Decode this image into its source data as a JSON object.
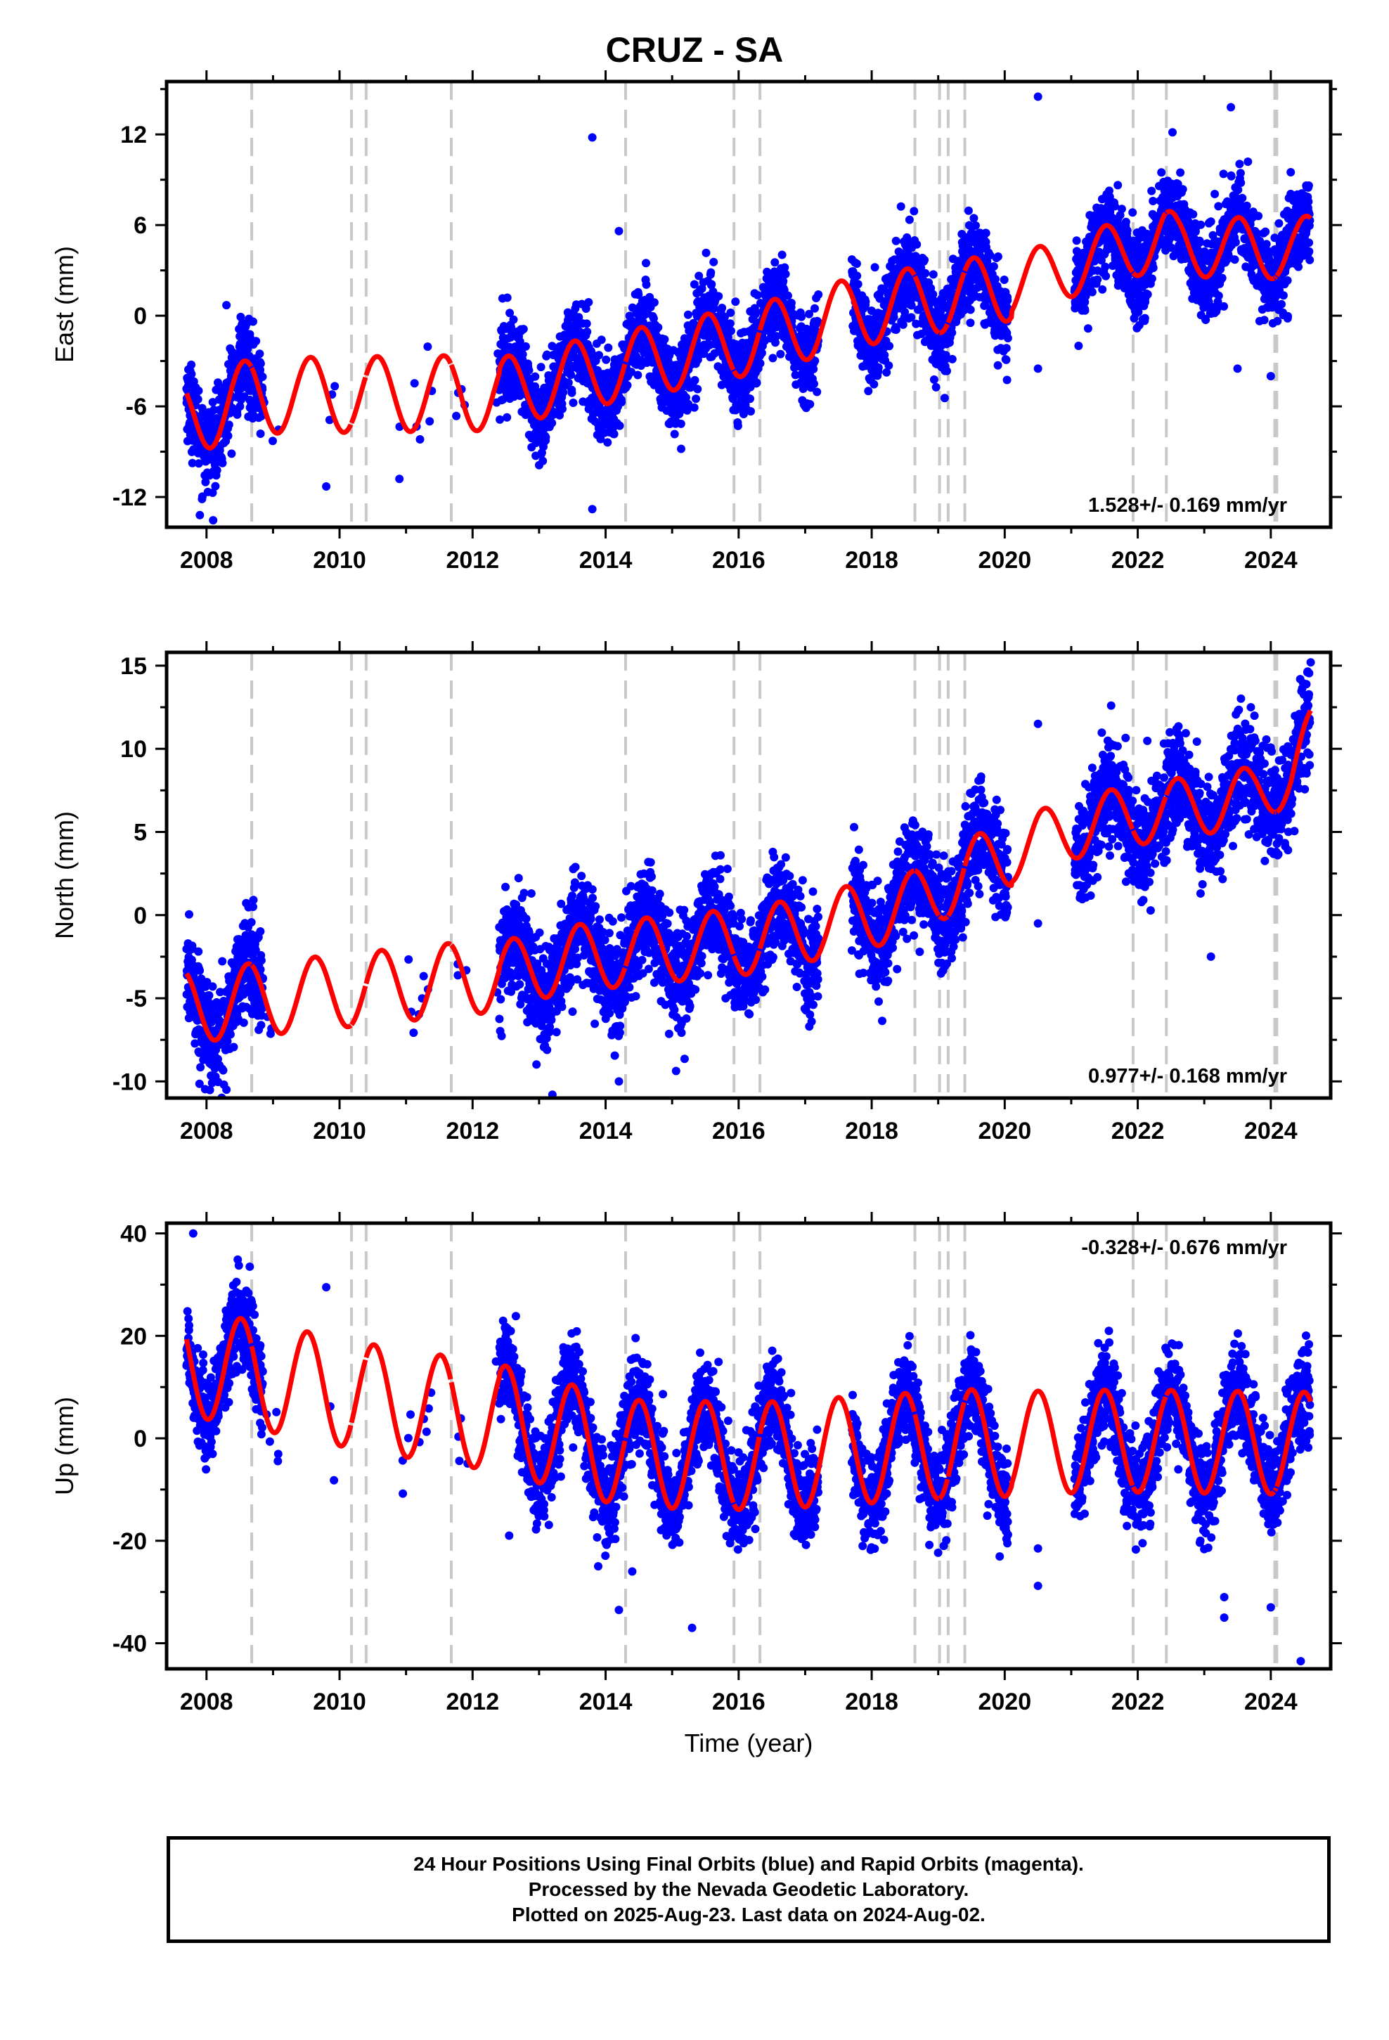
{
  "title": "CRUZ - SA",
  "colors": {
    "final_orbits": "#0000ff",
    "model": "#ff0000",
    "offsets": "#c8c8c8",
    "frame": "#000000"
  },
  "chart_data": [
    {
      "type": "scatter",
      "component": "east",
      "ylabel": "East (mm)",
      "xlabel": "",
      "xlim": [
        2007.4,
        2024.9
      ],
      "ylim": [
        -14,
        15.5
      ],
      "xticks": [
        2008,
        2010,
        2012,
        2014,
        2016,
        2018,
        2020,
        2022,
        2024
      ],
      "yticks": [
        -12,
        -6,
        0,
        6,
        12
      ],
      "rate": "1.528+/- 0.169 mm/yr",
      "rate_position": "bottom-right",
      "offsets": [
        2008.68,
        2010.18,
        2010.4,
        2011.68,
        2014.3,
        2015.93,
        2016.32,
        2018.65,
        2019.02,
        2019.15,
        2019.4,
        2021.93,
        2022.43,
        2024.06,
        2024.09
      ],
      "trend": [
        [
          2007.7,
          -6.8
        ],
        [
          2008.7,
          -5.3
        ],
        [
          2012.4,
          -5.1
        ],
        [
          2013.5,
          -4.0
        ],
        [
          2016.3,
          -1.5
        ],
        [
          2017.7,
          0.2
        ],
        [
          2019.9,
          1.8
        ],
        [
          2020.1,
          2.0
        ],
        [
          2021.4,
          3.8
        ],
        [
          2022.4,
          5.2
        ],
        [
          2022.6,
          4.6
        ],
        [
          2024.4,
          4.4
        ],
        [
          2024.6,
          4.7
        ]
      ],
      "seasonal": [
        {
          "start": 2007.7,
          "amp": 2.5,
          "phase": 4.3
        },
        {
          "start": 2012.4,
          "amp": 2.3,
          "phase": 4.5
        },
        {
          "start": 2020.1,
          "amp": 2.0,
          "phase": 4.6
        }
      ],
      "gaps": [
        [
          2009.1,
          2009.85
        ],
        [
          2009.95,
          2010.9
        ],
        [
          2011.4,
          2011.75
        ],
        [
          2011.95,
          2012.35
        ],
        [
          2017.2,
          2017.7
        ],
        [
          2020.05,
          2021.05
        ]
      ],
      "scatter_sigma": 1.4,
      "outliers": [
        [
          2013.8,
          11.8
        ],
        [
          2014.2,
          5.6
        ],
        [
          2013.8,
          -12.8
        ],
        [
          2020.5,
          14.5
        ],
        [
          2020.5,
          -3.5
        ],
        [
          2007.9,
          -13.2
        ],
        [
          2008.3,
          0.7
        ],
        [
          2009.8,
          -11.3
        ],
        [
          2010.9,
          -10.8
        ],
        [
          2023.5,
          -3.5
        ],
        [
          2024.0,
          -4.0
        ],
        [
          2024.3,
          9.5
        ],
        [
          2023.4,
          13.8
        ]
      ]
    },
    {
      "type": "scatter",
      "component": "north",
      "ylabel": "North (mm)",
      "xlabel": "",
      "xlim": [
        2007.4,
        2024.9
      ],
      "ylim": [
        -11,
        15.8
      ],
      "xticks": [
        2008,
        2010,
        2012,
        2014,
        2016,
        2018,
        2020,
        2022,
        2024
      ],
      "yticks": [
        -10,
        -5,
        0,
        5,
        10,
        15
      ],
      "rate": "0.977+/- 0.168 mm/yr",
      "rate_position": "bottom-right",
      "offsets": [
        2008.68,
        2010.18,
        2010.4,
        2011.68,
        2014.3,
        2015.93,
        2016.32,
        2018.65,
        2019.02,
        2019.15,
        2019.4,
        2021.93,
        2022.43,
        2024.06,
        2024.09
      ],
      "trend": [
        [
          2007.7,
          -5.5
        ],
        [
          2012.4,
          -3.6
        ],
        [
          2013.5,
          -2.6
        ],
        [
          2016.3,
          -1.5
        ],
        [
          2017.7,
          -0.2
        ],
        [
          2018.6,
          0.6
        ],
        [
          2019.4,
          2.5
        ],
        [
          2020.5,
          4.5
        ],
        [
          2021.4,
          5.6
        ],
        [
          2022.4,
          6.3
        ],
        [
          2023.7,
          7.1
        ],
        [
          2024.3,
          8.5
        ],
        [
          2024.6,
          10.5
        ]
      ],
      "seasonal": [
        {
          "start": 2007.7,
          "amp": 2.2,
          "phase": 3.9
        },
        {
          "start": 2012.4,
          "amp": 2.0,
          "phase": 4.0
        },
        {
          "start": 2020.1,
          "amp": 1.8,
          "phase": 4.1
        }
      ],
      "gaps": [
        [
          2009.1,
          2009.85
        ],
        [
          2009.95,
          2010.9
        ],
        [
          2011.4,
          2011.75
        ],
        [
          2011.95,
          2012.35
        ],
        [
          2017.2,
          2017.7
        ],
        [
          2020.05,
          2021.05
        ]
      ],
      "scatter_sigma": 1.5,
      "outliers": [
        [
          2013.2,
          -10.8
        ],
        [
          2014.2,
          -10.0
        ],
        [
          2008.3,
          -10.5
        ],
        [
          2008.7,
          0.5
        ],
        [
          2020.5,
          11.5
        ],
        [
          2020.5,
          -0.5
        ],
        [
          2023.1,
          -2.5
        ],
        [
          2024.6,
          15.2
        ],
        [
          2024.55,
          14.6
        ],
        [
          2023.7,
          12.5
        ],
        [
          2021.6,
          12.6
        ]
      ]
    },
    {
      "type": "scatter",
      "component": "up",
      "ylabel": "Up (mm)",
      "xlabel": "Time (year)",
      "xlim": [
        2007.4,
        2024.9
      ],
      "ylim": [
        -45,
        42
      ],
      "xticks": [
        2008,
        2010,
        2012,
        2014,
        2016,
        2018,
        2020,
        2022,
        2024
      ],
      "yticks": [
        -40,
        -20,
        0,
        20,
        40
      ],
      "rate": "-0.328+/- 0.676 mm/yr",
      "rate_position": "top-right",
      "offsets": [
        2008.68,
        2010.18,
        2010.4,
        2011.68,
        2014.3,
        2015.93,
        2016.32,
        2018.65,
        2019.02,
        2019.15,
        2019.4,
        2021.93,
        2022.43,
        2024.06,
        2024.09
      ],
      "trend": [
        [
          2007.7,
          15.0
        ],
        [
          2010.4,
          8.0
        ],
        [
          2012.4,
          4.0
        ],
        [
          2014.3,
          -3.0
        ],
        [
          2016.3,
          -3.5
        ],
        [
          2019.4,
          -1.0
        ],
        [
          2021.9,
          -0.5
        ],
        [
          2024.6,
          -1.0
        ]
      ],
      "seasonal": [
        {
          "start": 2007.7,
          "amp": 10.5,
          "phase": 4.6
        },
        {
          "start": 2012.4,
          "amp": 10.5,
          "phase": 4.7
        },
        {
          "start": 2020.1,
          "amp": 10.0,
          "phase": 4.7
        }
      ],
      "gaps": [
        [
          2009.1,
          2009.85
        ],
        [
          2009.95,
          2010.9
        ],
        [
          2011.4,
          2011.75
        ],
        [
          2011.95,
          2012.35
        ],
        [
          2017.2,
          2017.7
        ],
        [
          2020.05,
          2021.05
        ]
      ],
      "scatter_sigma": 4.5,
      "outliers": [
        [
          2014.2,
          -33.5
        ],
        [
          2014.4,
          -26.0
        ],
        [
          2015.3,
          -37.0
        ],
        [
          2020.5,
          -28.8
        ],
        [
          2020.5,
          -21.5
        ],
        [
          2023.3,
          -35.0
        ],
        [
          2023.3,
          -31.0
        ],
        [
          2024.45,
          -43.5
        ],
        [
          2012.55,
          -19.0
        ],
        [
          2007.8,
          40.0
        ],
        [
          2009.8,
          29.5
        ],
        [
          2008.65,
          33.5
        ],
        [
          2024.0,
          -33.0
        ]
      ]
    }
  ],
  "footer": {
    "line1": "24 Hour Positions Using Final Orbits (blue) and Rapid Orbits (magenta).",
    "line2": "Processed by the Nevada Geodetic Laboratory.",
    "line3": "Plotted on 2025-Aug-23. Last data on 2024-Aug-02."
  }
}
